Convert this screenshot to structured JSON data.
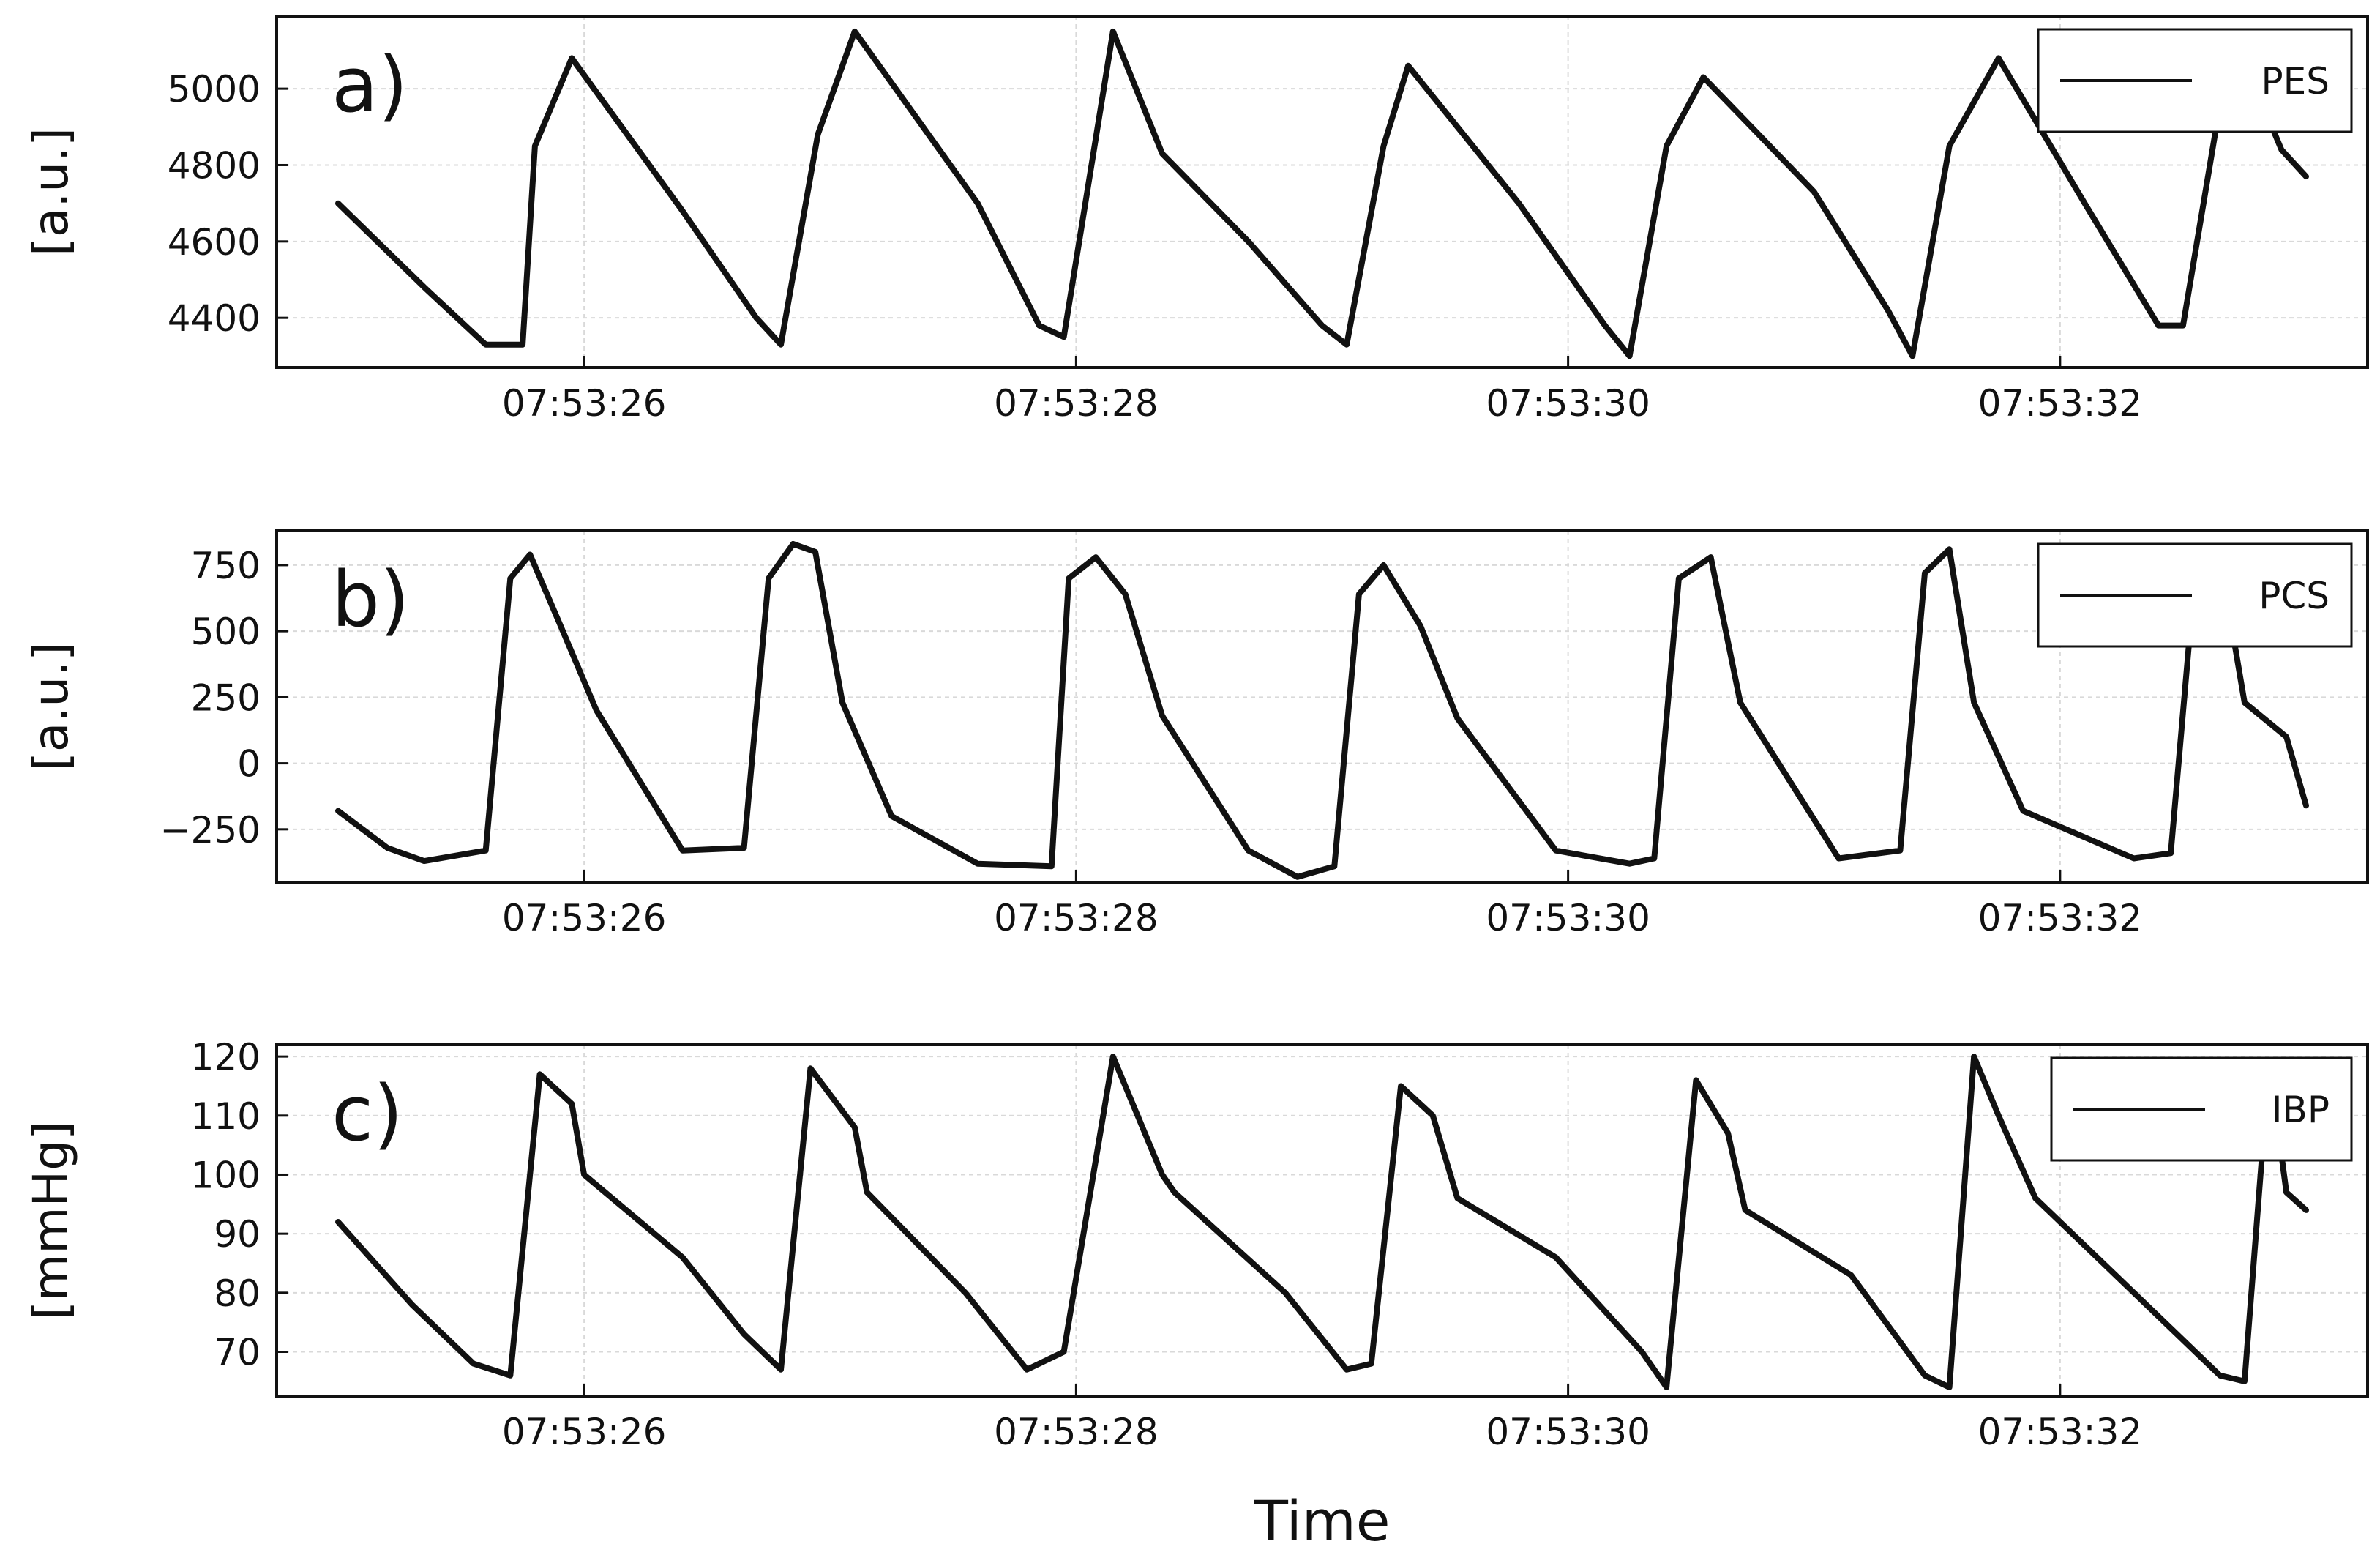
{
  "chart_data": [
    {
      "type": "line",
      "panel_label": "a)",
      "xlabel": "",
      "ylabel": "[a.u.]",
      "xlim": [
        "07:53:24.75",
        "07:53:33.25"
      ],
      "ylim": [
        4270,
        5190
      ],
      "x_ticks": [
        "07:53:26",
        "07:53:28",
        "07:53:30",
        "07:53:32"
      ],
      "y_ticks": [
        4400,
        4600,
        4800,
        5000
      ],
      "y_tick_labels": [
        "4400",
        "4600",
        "4800",
        "5000"
      ],
      "grid": true,
      "legend_position": "top-right",
      "series": [
        {
          "name": "PES",
          "color": "#111111",
          "x": [
            "07:53:25.00",
            "07:53:25.35",
            "07:53:25.60",
            "07:53:25.75",
            "07:53:25.80",
            "07:53:25.95",
            "07:53:26.40",
            "07:53:26.70",
            "07:53:26.80",
            "07:53:26.95",
            "07:53:27.10",
            "07:53:27.60",
            "07:53:27.85",
            "07:53:27.95",
            "07:53:28.15",
            "07:53:28.35",
            "07:53:28.70",
            "07:53:29.00",
            "07:53:29.10",
            "07:53:29.25",
            "07:53:29.35",
            "07:53:29.80",
            "07:53:30.15",
            "07:53:30.25",
            "07:53:30.40",
            "07:53:30.55",
            "07:53:31.00",
            "07:53:31.30",
            "07:53:31.40",
            "07:53:31.55",
            "07:53:31.75",
            "07:53:32.10",
            "07:53:32.40",
            "07:53:32.50",
            "07:53:32.70",
            "07:53:32.90",
            "07:53:33.00"
          ],
          "y": [
            4700,
            4480,
            4330,
            4330,
            4850,
            5080,
            4680,
            4400,
            4330,
            4880,
            5150,
            4700,
            4380,
            4350,
            5150,
            4830,
            4600,
            4380,
            4330,
            4850,
            5060,
            4700,
            4380,
            4300,
            4850,
            5030,
            4730,
            4420,
            4300,
            4850,
            5080,
            4700,
            4380,
            4380,
            5150,
            4840,
            4770
          ]
        }
      ]
    },
    {
      "type": "line",
      "panel_label": "b)",
      "xlabel": "",
      "ylabel": "[a.u.]",
      "xlim": [
        "07:53:24.75",
        "07:53:33.25"
      ],
      "ylim": [
        -450,
        880
      ],
      "x_ticks": [
        "07:53:26",
        "07:53:28",
        "07:53:30",
        "07:53:32"
      ],
      "y_ticks": [
        -250,
        0,
        250,
        500,
        750
      ],
      "y_tick_labels": [
        "−250",
        "0",
        "250",
        "500",
        "750"
      ],
      "grid": true,
      "legend_position": "top-right",
      "series": [
        {
          "name": "PCS",
          "color": "#111111",
          "x": [
            "07:53:25.00",
            "07:53:25.20",
            "07:53:25.35",
            "07:53:25.60",
            "07:53:25.70",
            "07:53:25.78",
            "07:53:25.90",
            "07:53:26.05",
            "07:53:26.40",
            "07:53:26.65",
            "07:53:26.75",
            "07:53:26.85",
            "07:53:26.94",
            "07:53:27.05",
            "07:53:27.25",
            "07:53:27.60",
            "07:53:27.90",
            "07:53:27.97",
            "07:53:28.08",
            "07:53:28.20",
            "07:53:28.35",
            "07:53:28.70",
            "07:53:28.90",
            "07:53:29.05",
            "07:53:29.15",
            "07:53:29.25",
            "07:53:29.40",
            "07:53:29.55",
            "07:53:29.95",
            "07:53:30.25",
            "07:53:30.35",
            "07:53:30.45",
            "07:53:30.58",
            "07:53:30.70",
            "07:53:31.10",
            "07:53:31.35",
            "07:53:31.45",
            "07:53:31.55",
            "07:53:31.65",
            "07:53:31.85",
            "07:53:32.30",
            "07:53:32.45",
            "07:53:32.55",
            "07:53:32.65",
            "07:53:32.75",
            "07:53:32.92",
            "07:53:33.00"
          ],
          "y": [
            -180,
            -320,
            -370,
            -330,
            700,
            790,
            530,
            200,
            -330,
            -320,
            700,
            830,
            800,
            230,
            -200,
            -380,
            -390,
            700,
            780,
            640,
            180,
            -330,
            -430,
            -390,
            640,
            750,
            520,
            170,
            -330,
            -380,
            -360,
            700,
            780,
            230,
            -360,
            -330,
            720,
            810,
            230,
            -180,
            -360,
            -340,
            730,
            780,
            230,
            100,
            -160
          ]
        }
      ]
    },
    {
      "type": "line",
      "panel_label": "c)",
      "xlabel": "Time",
      "ylabel": "[mmHg]",
      "xlim": [
        "07:53:24.75",
        "07:53:33.25"
      ],
      "ylim": [
        62.5,
        122
      ],
      "x_ticks": [
        "07:53:26",
        "07:53:28",
        "07:53:30",
        "07:53:32"
      ],
      "y_ticks": [
        70,
        80,
        90,
        100,
        110,
        120
      ],
      "y_tick_labels": [
        "70",
        "80",
        "90",
        "100",
        "110",
        "120"
      ],
      "grid": true,
      "legend_position": "top-right",
      "series": [
        {
          "name": "IBP",
          "color": "#111111",
          "x": [
            "07:53:25.00",
            "07:53:25.30",
            "07:53:25.55",
            "07:53:25.70",
            "07:53:25.82",
            "07:53:25.95",
            "07:53:26.00",
            "07:53:26.40",
            "07:53:26.65",
            "07:53:26.80",
            "07:53:26.92",
            "07:53:27.10",
            "07:53:27.15",
            "07:53:27.55",
            "07:53:27.80",
            "07:53:27.95",
            "07:53:28.15",
            "07:53:28.35",
            "07:53:28.40",
            "07:53:28.85",
            "07:53:29.10",
            "07:53:29.20",
            "07:53:29.32",
            "07:53:29.45",
            "07:53:29.55",
            "07:53:29.95",
            "07:53:30.30",
            "07:53:30.40",
            "07:53:30.52",
            "07:53:30.65",
            "07:53:30.72",
            "07:53:31.15",
            "07:53:31.45",
            "07:53:31.55",
            "07:53:31.65",
            "07:53:31.75",
            "07:53:31.90",
            "07:53:32.30",
            "07:53:32.55",
            "07:53:32.65",
            "07:53:32.75",
            "07:53:32.85",
            "07:53:32.92",
            "07:53:33.00"
          ],
          "y": [
            92,
            78,
            68,
            66,
            117,
            112,
            100,
            86,
            73,
            67,
            118,
            108,
            97,
            80,
            67,
            70,
            120,
            100,
            97,
            80,
            67,
            68,
            115,
            110,
            96,
            86,
            70,
            64,
            116,
            107,
            94,
            83,
            66,
            64,
            120,
            110,
            96,
            80,
            70,
            66,
            65,
            119,
            97,
            94
          ]
        }
      ]
    }
  ]
}
